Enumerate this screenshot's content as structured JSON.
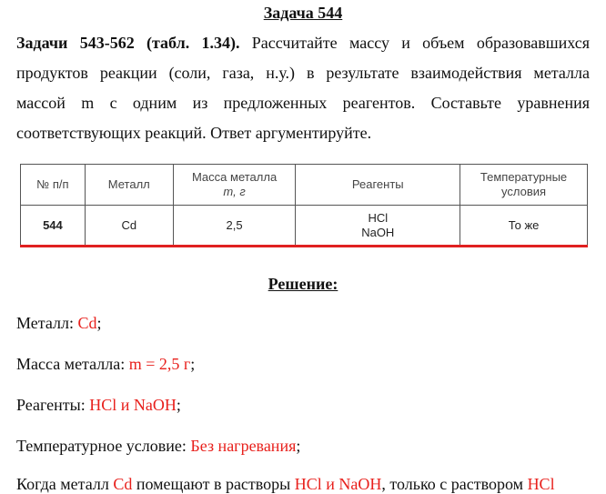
{
  "title": "Задача 544",
  "intro": {
    "lead": "Задачи 543-562 (табл. 1.34).",
    "lines": [
      "Рассчитайте массу и объем образовавшихся",
      "продуктов реакции (соли, газа, н.у.) в результате взаимодействия металла",
      "массой m с одним из предложенных реагентов. Составьте уравнения",
      "соответствующих реакций. Ответ аргументируйте."
    ]
  },
  "table": {
    "header": [
      [
        "№ п/п"
      ],
      [
        "Металл"
      ],
      [
        "Масса металла",
        "m, г"
      ],
      [
        "Реагенты"
      ],
      [
        "Температурные",
        "условия"
      ]
    ],
    "rows": [
      [
        [
          "544"
        ],
        [
          "Cd"
        ],
        [
          "2,5"
        ],
        [
          "HCl",
          "NaOH"
        ],
        [
          "То же"
        ]
      ]
    ]
  },
  "solution": {
    "title": "Решение:",
    "items": [
      {
        "label": "Металл: ",
        "value": "Cd",
        "end": ";"
      },
      {
        "label": "Масса металла: ",
        "value": "m = 2,5 г",
        "end": ";"
      },
      {
        "label": "Реагенты: ",
        "value": "HCl и NaOH",
        "end": ";"
      },
      {
        "label": "Температурное условие: ",
        "value": "Без нагревания",
        "end": ";"
      }
    ],
    "last": [
      "Когда металл ",
      "Cd",
      " помещают в растворы ",
      "HCl и NaOH",
      ", только с раствором ",
      "HCl"
    ]
  }
}
